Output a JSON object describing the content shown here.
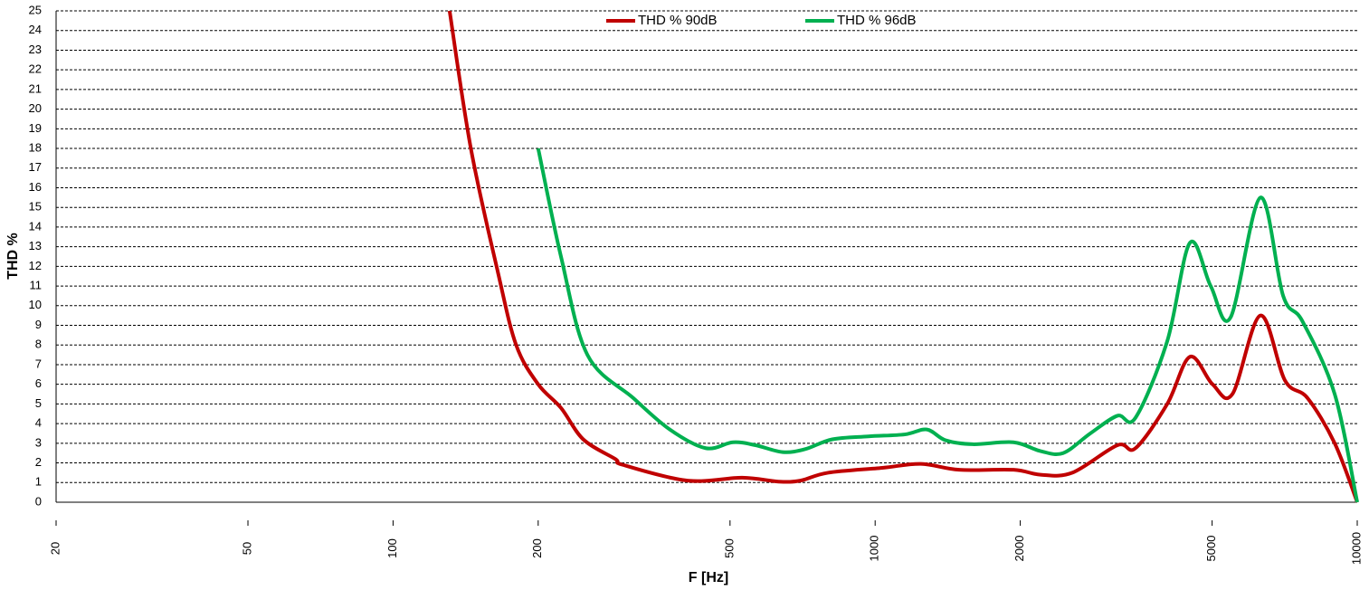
{
  "chart_data": {
    "type": "line",
    "x_label": "F [Hz]",
    "y_label": "THD %",
    "xscale": "log",
    "xlim": [
      20,
      10000
    ],
    "xticks": [
      20,
      50,
      100,
      200,
      500,
      1000,
      2000,
      5000,
      10000
    ],
    "ylim": [
      0,
      25
    ],
    "yticks": [
      0,
      1,
      2,
      3,
      4,
      5,
      6,
      7,
      8,
      9,
      10,
      11,
      12,
      13,
      14,
      15,
      16,
      17,
      18,
      19,
      20,
      21,
      22,
      23,
      24,
      25
    ],
    "grid": true,
    "legend": "top",
    "series": [
      {
        "name": "THD % 90dB",
        "color": "#c00000",
        "x": [
          131,
          145,
          165,
          180,
          200,
          223,
          248,
          289,
          300,
          408,
          530,
          630,
          700,
          798,
          1035,
          1245,
          1494,
          1936,
          2204,
          2564,
          3180,
          3468,
          4036,
          4498,
          5010,
          5508,
          6296,
          7080,
          7886,
          8980,
          10000
        ],
        "values": [
          25,
          18,
          11.7,
          8,
          6,
          4.8,
          3.2,
          2.2,
          1.9,
          1.1,
          1.25,
          1.05,
          1.1,
          1.5,
          1.75,
          1.95,
          1.65,
          1.65,
          1.4,
          1.5,
          2.9,
          2.75,
          5,
          7.4,
          6,
          5.5,
          9.5,
          6.2,
          5.3,
          3,
          0
        ]
      },
      {
        "name": "THD % 96dB",
        "color": "#00b050",
        "x": [
          200,
          223,
          253,
          315,
          375,
          445,
          507,
          565,
          643,
          716,
          815,
          968,
          1152,
          1280,
          1400,
          1594,
          1936,
          2204,
          2454,
          2794,
          3180,
          3468,
          4036,
          4498,
          4966,
          5460,
          6296,
          7020,
          7700,
          8980,
          10000
        ],
        "values": [
          18,
          12.5,
          7.5,
          5.3,
          3.7,
          2.75,
          3.05,
          2.9,
          2.55,
          2.7,
          3.2,
          3.35,
          3.45,
          3.7,
          3.15,
          2.95,
          3.05,
          2.6,
          2.5,
          3.5,
          4.4,
          4.3,
          8.2,
          13.2,
          11,
          9.4,
          15.5,
          10.5,
          9.2,
          5.5,
          0
        ]
      }
    ]
  }
}
